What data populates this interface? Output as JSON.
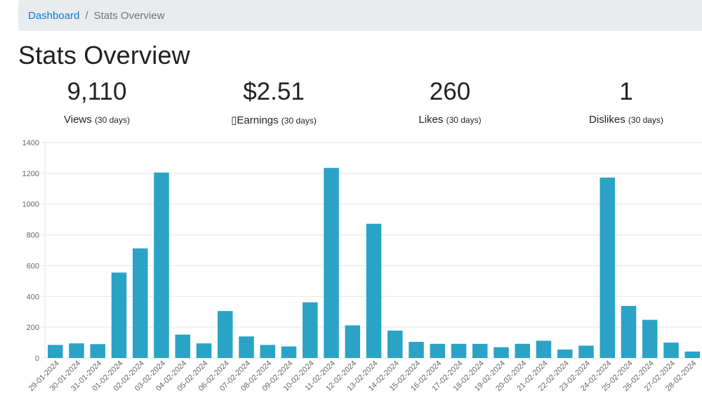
{
  "breadcrumb": {
    "home": "Dashboard",
    "separator": "/",
    "current": "Stats Overview"
  },
  "page_title": "Stats Overview",
  "stats": [
    {
      "value": "9,110",
      "label": "Views",
      "period": "(30 days)"
    },
    {
      "value": "$2.51",
      "label": "Earnings",
      "period": "(30 days)"
    },
    {
      "value": "260",
      "label": "Likes",
      "period": "(30 days)"
    },
    {
      "value": "1",
      "label": "Dislikes",
      "period": "(30 days)"
    }
  ],
  "colors": {
    "bar": "#2aa3c6",
    "grid": "#e6e6e6",
    "link": "#0d7bd6",
    "breadcrumb_bg": "#e9ecef"
  },
  "chart_data": {
    "type": "bar",
    "title": "",
    "xlabel": "",
    "ylabel": "",
    "ylim": [
      0,
      1400
    ],
    "yticks": [
      0,
      200,
      400,
      600,
      800,
      1000,
      1200,
      1400
    ],
    "grid": true,
    "categories": [
      "29-01-2024",
      "30-01-2024",
      "31-01-2024",
      "01-02-2024",
      "02-02-2024",
      "03-02-2024",
      "04-02-2024",
      "05-02-2024",
      "06-02-2024",
      "07-02-2024",
      "08-02-2024",
      "09-02-2024",
      "10-02-2024",
      "11-02-2024",
      "12-02-2024",
      "13-02-2024",
      "14-02-2024",
      "15-02-2024",
      "16-02-2024",
      "17-02-2024",
      "18-02-2024",
      "19-02-2024",
      "20-02-2024",
      "21-02-2024",
      "22-02-2024",
      "23-02-2024",
      "24-02-2024",
      "25-02-2024",
      "26-02-2024",
      "27-02-2024",
      "28-02-2024"
    ],
    "values": [
      85,
      95,
      90,
      555,
      712,
      1205,
      152,
      95,
      305,
      140,
      85,
      75,
      362,
      1235,
      212,
      872,
      178,
      105,
      92,
      92,
      92,
      70,
      92,
      112,
      55,
      80,
      1172,
      338,
      248,
      100,
      42
    ]
  }
}
